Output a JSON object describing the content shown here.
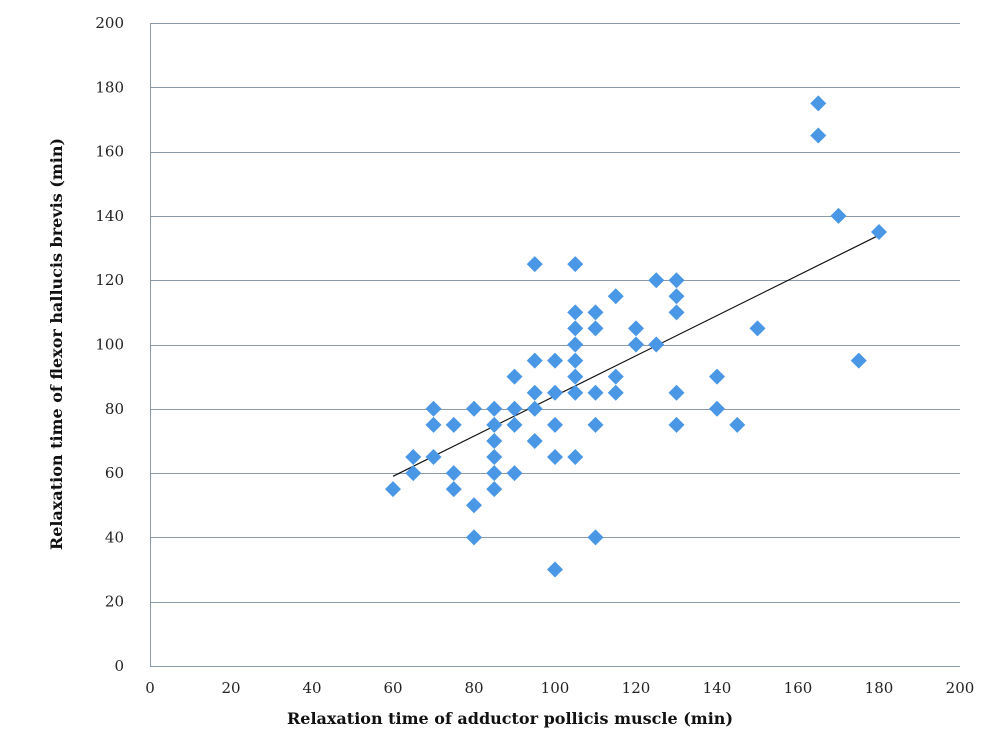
{
  "chart_data": {
    "type": "scatter",
    "title": "",
    "xlabel": "Relaxation time of adductor pollicis muscle (min)",
    "ylabel": "Relaxation time of flexor hallucis brevis (min)",
    "xlim": [
      0,
      200
    ],
    "ylim": [
      0,
      200
    ],
    "xticks": [
      "0",
      "20",
      "40",
      "60",
      "80",
      "100",
      "120",
      "140",
      "160",
      "180",
      "200"
    ],
    "yticks": [
      "0",
      "20",
      "40",
      "60",
      "80",
      "100",
      "120",
      "140",
      "160",
      "180",
      "200"
    ],
    "grid": "horizontal",
    "marker": "diamond",
    "marker_color": "#4a97e6",
    "trendline_color": "#111111",
    "trendline": {
      "x": [
        60,
        180
      ],
      "y": [
        59,
        134
      ]
    },
    "points": [
      [
        60,
        55
      ],
      [
        65,
        65
      ],
      [
        65,
        60
      ],
      [
        70,
        80
      ],
      [
        70,
        75
      ],
      [
        70,
        65
      ],
      [
        75,
        75
      ],
      [
        75,
        60
      ],
      [
        75,
        55
      ],
      [
        80,
        80
      ],
      [
        80,
        50
      ],
      [
        80,
        40
      ],
      [
        85,
        80
      ],
      [
        85,
        75
      ],
      [
        85,
        70
      ],
      [
        85,
        65
      ],
      [
        85,
        60
      ],
      [
        85,
        55
      ],
      [
        90,
        90
      ],
      [
        90,
        80
      ],
      [
        90,
        75
      ],
      [
        90,
        60
      ],
      [
        95,
        125
      ],
      [
        95,
        95
      ],
      [
        95,
        85
      ],
      [
        95,
        80
      ],
      [
        95,
        70
      ],
      [
        100,
        95
      ],
      [
        100,
        85
      ],
      [
        100,
        75
      ],
      [
        100,
        65
      ],
      [
        100,
        30
      ],
      [
        105,
        125
      ],
      [
        105,
        110
      ],
      [
        105,
        105
      ],
      [
        105,
        100
      ],
      [
        105,
        95
      ],
      [
        105,
        90
      ],
      [
        105,
        85
      ],
      [
        105,
        65
      ],
      [
        110,
        110
      ],
      [
        110,
        105
      ],
      [
        110,
        85
      ],
      [
        110,
        75
      ],
      [
        110,
        40
      ],
      [
        115,
        115
      ],
      [
        115,
        90
      ],
      [
        115,
        85
      ],
      [
        120,
        105
      ],
      [
        120,
        100
      ],
      [
        125,
        120
      ],
      [
        125,
        100
      ],
      [
        130,
        120
      ],
      [
        130,
        115
      ],
      [
        130,
        110
      ],
      [
        130,
        85
      ],
      [
        130,
        75
      ],
      [
        140,
        90
      ],
      [
        140,
        80
      ],
      [
        145,
        75
      ],
      [
        150,
        105
      ],
      [
        165,
        175
      ],
      [
        165,
        165
      ],
      [
        170,
        140
      ],
      [
        175,
        95
      ],
      [
        180,
        135
      ]
    ]
  }
}
